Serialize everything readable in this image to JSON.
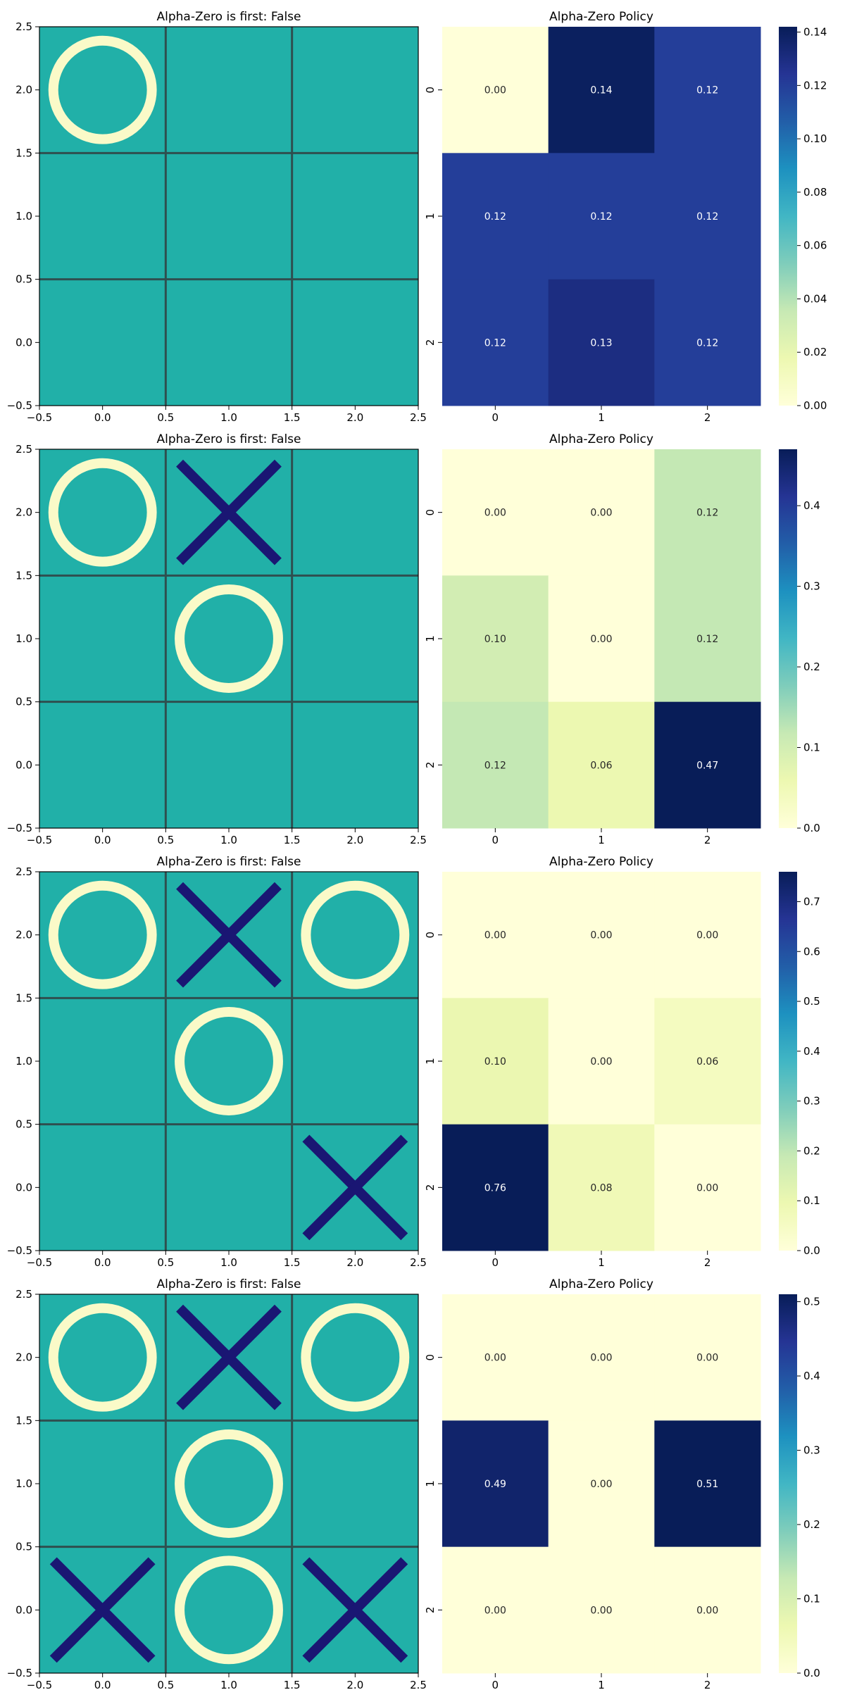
{
  "colors": {
    "board_bg": "#21b0a8",
    "grid_line": "#2f4f4f",
    "o_mark": "#fafac8",
    "x_mark": "#1a1673",
    "cmap_low": "#ffffd9",
    "cmap_high": "#081d58"
  },
  "chart_data": [
    {
      "type": "board",
      "title": "Alpha-Zero is first: False",
      "xlim": [
        -0.5,
        2.5
      ],
      "ylim": [
        -0.5,
        2.5
      ],
      "xticks": [
        "−0.5",
        "0.0",
        "0.5",
        "1.0",
        "1.5",
        "2.0",
        "2.5"
      ],
      "yticks": [
        "−0.5",
        "0.0",
        "0.5",
        "1.0",
        "1.5",
        "2.0",
        "2.5"
      ],
      "cells": [
        [
          "O",
          "",
          ""
        ],
        [
          "",
          "",
          ""
        ],
        [
          "",
          "",
          ""
        ]
      ]
    },
    {
      "type": "heatmap",
      "title": "Alpha-Zero Policy",
      "row_labels": [
        "0",
        "1",
        "2"
      ],
      "col_labels": [
        "0",
        "1",
        "2"
      ],
      "values": [
        [
          0.0,
          0.14,
          0.12
        ],
        [
          0.12,
          0.12,
          0.12
        ],
        [
          0.12,
          0.13,
          0.12
        ]
      ],
      "labels": [
        [
          "0.00",
          "0.14",
          "0.12"
        ],
        [
          "0.12",
          "0.12",
          "0.12"
        ],
        [
          "0.12",
          "0.13",
          "0.12"
        ]
      ],
      "colorbar": {
        "vmin": 0,
        "vmax": 0.142,
        "ticks": [
          0,
          0.02,
          0.04,
          0.06,
          0.08,
          0.1,
          0.12,
          0.14
        ],
        "tick_labels": [
          "0.00",
          "0.02",
          "0.04",
          "0.06",
          "0.08",
          "0.10",
          "0.12",
          "0.14"
        ]
      }
    },
    {
      "type": "board",
      "title": "Alpha-Zero is first: False",
      "xlim": [
        -0.5,
        2.5
      ],
      "ylim": [
        -0.5,
        2.5
      ],
      "xticks": [
        "−0.5",
        "0.0",
        "0.5",
        "1.0",
        "1.5",
        "2.0",
        "2.5"
      ],
      "yticks": [
        "−0.5",
        "0.0",
        "0.5",
        "1.0",
        "1.5",
        "2.0",
        "2.5"
      ],
      "cells": [
        [
          "O",
          "X",
          ""
        ],
        [
          "",
          "O",
          ""
        ],
        [
          "",
          "",
          ""
        ]
      ]
    },
    {
      "type": "heatmap",
      "title": "Alpha-Zero Policy",
      "row_labels": [
        "0",
        "1",
        "2"
      ],
      "col_labels": [
        "0",
        "1",
        "2"
      ],
      "values": [
        [
          0.0,
          0.0,
          0.12
        ],
        [
          0.1,
          0.0,
          0.12
        ],
        [
          0.12,
          0.06,
          0.47
        ]
      ],
      "labels": [
        [
          "0.00",
          "0.00",
          "0.12"
        ],
        [
          "0.10",
          "0.00",
          "0.12"
        ],
        [
          "0.12",
          "0.06",
          "0.47"
        ]
      ],
      "colorbar": {
        "vmin": 0,
        "vmax": 0.47,
        "ticks": [
          0,
          0.1,
          0.2,
          0.3,
          0.4
        ],
        "tick_labels": [
          "0.0",
          "0.1",
          "0.2",
          "0.3",
          "0.4"
        ]
      }
    },
    {
      "type": "board",
      "title": "Alpha-Zero is first: False",
      "xlim": [
        -0.5,
        2.5
      ],
      "ylim": [
        -0.5,
        2.5
      ],
      "xticks": [
        "−0.5",
        "0.0",
        "0.5",
        "1.0",
        "1.5",
        "2.0",
        "2.5"
      ],
      "yticks": [
        "−0.5",
        "0.0",
        "0.5",
        "1.0",
        "1.5",
        "2.0",
        "2.5"
      ],
      "cells": [
        [
          "O",
          "X",
          "O"
        ],
        [
          "",
          "O",
          ""
        ],
        [
          "",
          "",
          "X"
        ]
      ]
    },
    {
      "type": "heatmap",
      "title": "Alpha-Zero Policy",
      "row_labels": [
        "0",
        "1",
        "2"
      ],
      "col_labels": [
        "0",
        "1",
        "2"
      ],
      "values": [
        [
          0.0,
          0.0,
          0.0
        ],
        [
          0.1,
          0.0,
          0.06
        ],
        [
          0.76,
          0.08,
          0.0
        ]
      ],
      "labels": [
        [
          "0.00",
          "0.00",
          "0.00"
        ],
        [
          "0.10",
          "0.00",
          "0.06"
        ],
        [
          "0.76",
          "0.08",
          "0.00"
        ]
      ],
      "colorbar": {
        "vmin": 0,
        "vmax": 0.76,
        "ticks": [
          0,
          0.1,
          0.2,
          0.3,
          0.4,
          0.5,
          0.6,
          0.7
        ],
        "tick_labels": [
          "0.0",
          "0.1",
          "0.2",
          "0.3",
          "0.4",
          "0.5",
          "0.6",
          "0.7"
        ]
      }
    },
    {
      "type": "board",
      "title": "Alpha-Zero is first: False",
      "xlim": [
        -0.5,
        2.5
      ],
      "ylim": [
        -0.5,
        2.5
      ],
      "xticks": [
        "−0.5",
        "0.0",
        "0.5",
        "1.0",
        "1.5",
        "2.0",
        "2.5"
      ],
      "yticks": [
        "−0.5",
        "0.0",
        "0.5",
        "1.0",
        "1.5",
        "2.0",
        "2.5"
      ],
      "cells": [
        [
          "O",
          "X",
          "O"
        ],
        [
          "",
          "O",
          ""
        ],
        [
          "X",
          "O",
          "X"
        ]
      ]
    },
    {
      "type": "heatmap",
      "title": "Alpha-Zero Policy",
      "row_labels": [
        "0",
        "1",
        "2"
      ],
      "col_labels": [
        "0",
        "1",
        "2"
      ],
      "values": [
        [
          0.0,
          0.0,
          0.0
        ],
        [
          0.49,
          0.0,
          0.51
        ],
        [
          0.0,
          0.0,
          0.0
        ]
      ],
      "labels": [
        [
          "0.00",
          "0.00",
          "0.00"
        ],
        [
          "0.49",
          "0.00",
          "0.51"
        ],
        [
          "0.00",
          "0.00",
          "0.00"
        ]
      ],
      "colorbar": {
        "vmin": 0,
        "vmax": 0.51,
        "ticks": [
          0,
          0.1,
          0.2,
          0.3,
          0.4,
          0.5
        ],
        "tick_labels": [
          "0.0",
          "0.1",
          "0.2",
          "0.3",
          "0.4",
          "0.5"
        ]
      }
    }
  ]
}
